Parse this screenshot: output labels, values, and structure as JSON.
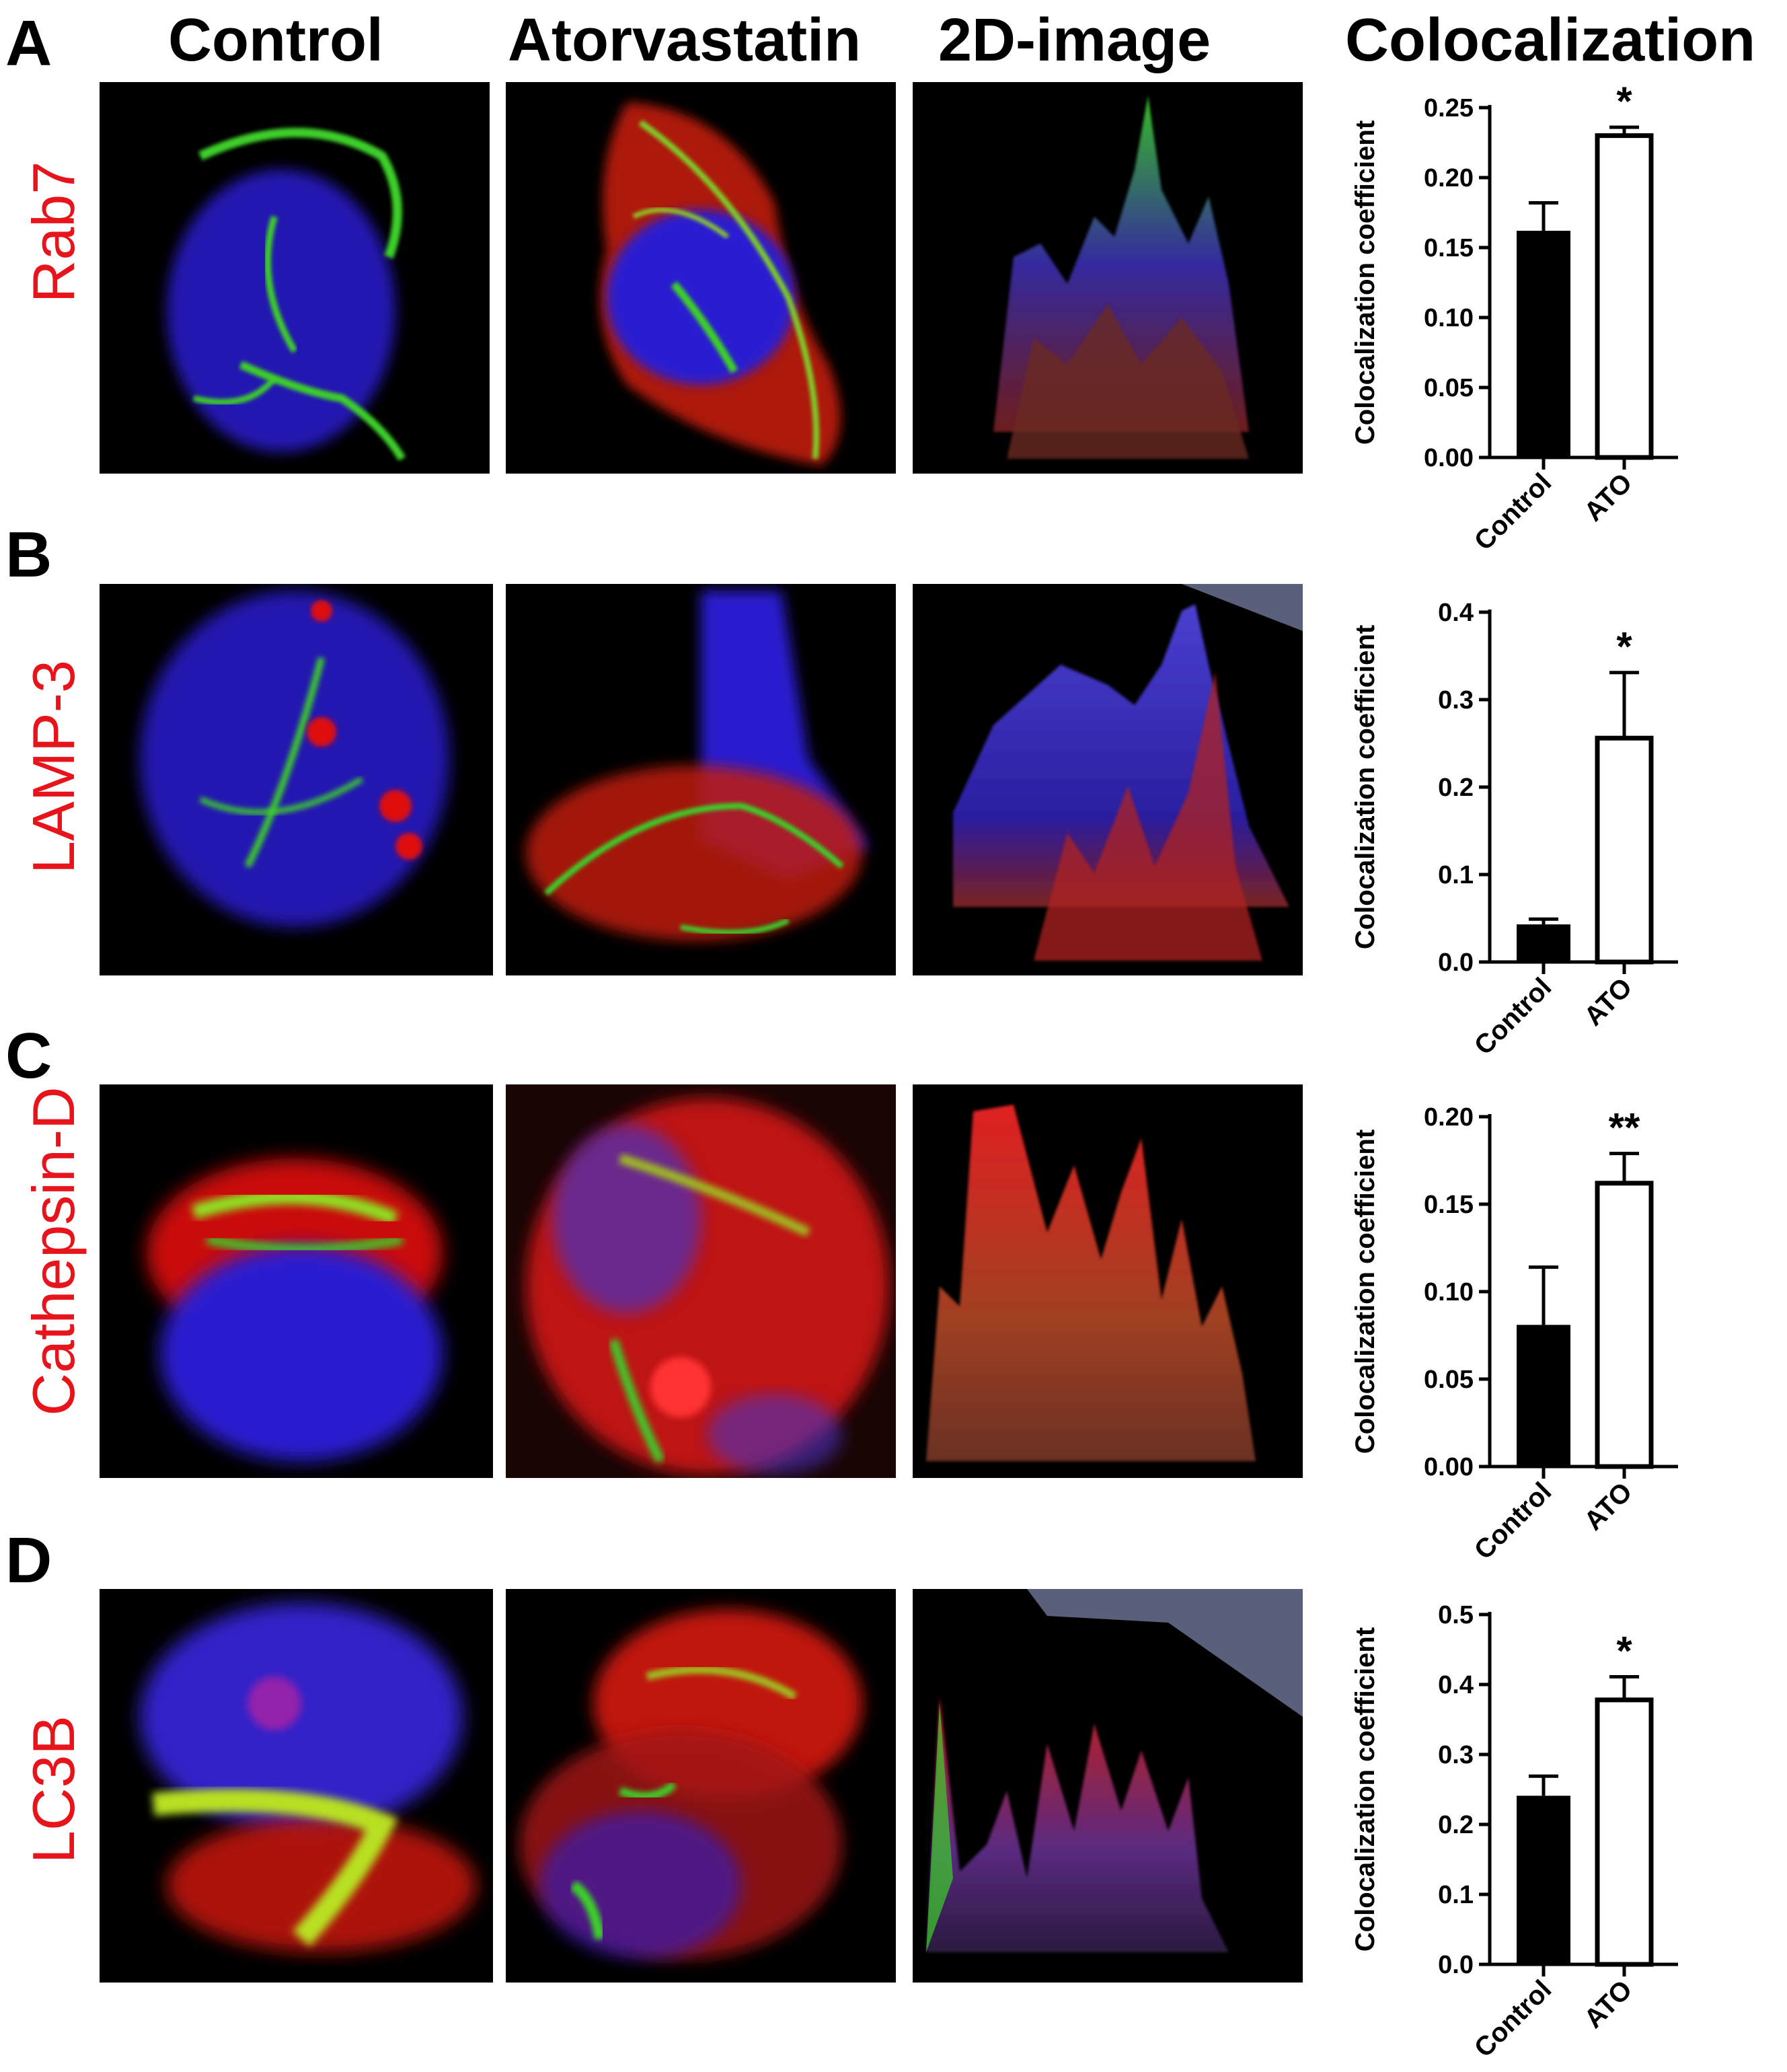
{
  "columns": [
    "Control",
    "Atorvastatin",
    "2D-image",
    "Colocalization"
  ],
  "panels": [
    {
      "letter": "A",
      "label": "Rab7"
    },
    {
      "letter": "B",
      "label": "LAMP-3"
    },
    {
      "letter": "C",
      "label": "Cathepsin-D"
    },
    {
      "letter": "D",
      "label": "LC3B"
    }
  ],
  "colors": {
    "label_red": "#e8141b",
    "nucleus_blue": "#2a1fd0",
    "marker_green": "#3ccf2a",
    "marker_red": "#e01010",
    "surface_fill": "#5a607c"
  },
  "chart_data": [
    {
      "type": "bar",
      "categories": [
        "Control",
        "ATO"
      ],
      "values": [
        0.162,
        0.23
      ],
      "errors": [
        0.02,
        0.006
      ],
      "fills": [
        "#000000",
        "#ffffff"
      ],
      "significance": "*",
      "ylabel": "Colocalization coefficient",
      "ylim": [
        0,
        0.25
      ],
      "ticks": [
        "0.00",
        "0.05",
        "0.10",
        "0.15",
        "0.20",
        "0.25"
      ]
    },
    {
      "type": "bar",
      "categories": [
        "Control",
        "ATO"
      ],
      "values": [
        0.043,
        0.256
      ],
      "errors": [
        0.006,
        0.075
      ],
      "fills": [
        "#000000",
        "#ffffff"
      ],
      "significance": "*",
      "ylabel": "Colocalization coefficient",
      "ylim": [
        0,
        0.4
      ],
      "ticks": [
        "0.0",
        "0.1",
        "0.2",
        "0.3",
        "0.4"
      ]
    },
    {
      "type": "bar",
      "categories": [
        "Control",
        "ATO"
      ],
      "values": [
        0.081,
        0.162
      ],
      "errors": [
        0.033,
        0.017
      ],
      "fills": [
        "#000000",
        "#ffffff"
      ],
      "significance": "**",
      "ylabel": "Colocalization coefficient",
      "ylim": [
        0,
        0.2
      ],
      "ticks": [
        "0.00",
        "0.05",
        "0.10",
        "0.15",
        "0.20"
      ]
    },
    {
      "type": "bar",
      "categories": [
        "Control",
        "ATO"
      ],
      "values": [
        0.241,
        0.378
      ],
      "errors": [
        0.028,
        0.033
      ],
      "fills": [
        "#000000",
        "#ffffff"
      ],
      "significance": "*",
      "ylabel": "Colocalization coefficient",
      "ylim": [
        0,
        0.5
      ],
      "ticks": [
        "0.0",
        "0.1",
        "0.2",
        "0.3",
        "0.4",
        "0.5"
      ]
    }
  ]
}
